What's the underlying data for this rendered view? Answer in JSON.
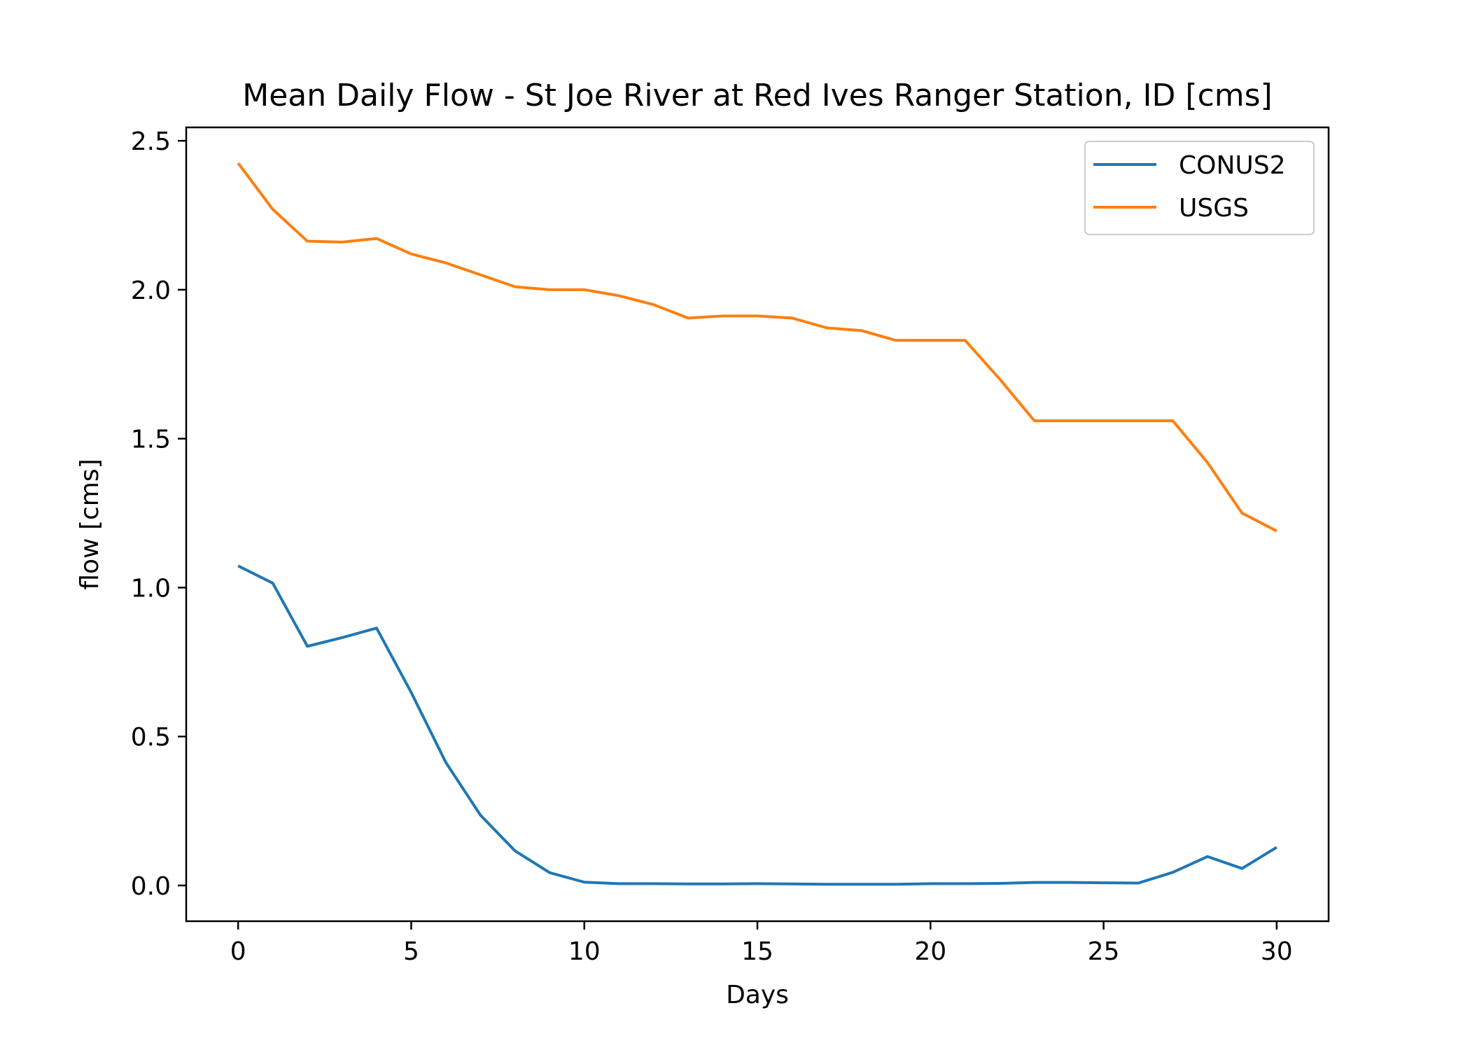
{
  "chart_data": {
    "type": "line",
    "title": "Mean Daily Flow - St Joe River at Red Ives Ranger Station, ID [cms]",
    "xlabel": "Days",
    "ylabel": "flow [cms]",
    "xlim": [
      -1.5,
      31.5
    ],
    "ylim": [
      -0.12,
      2.545
    ],
    "xticks": [
      0,
      5,
      10,
      15,
      20,
      25,
      30
    ],
    "xtick_labels": [
      "0",
      "5",
      "10",
      "15",
      "20",
      "25",
      "30"
    ],
    "yticks": [
      0.0,
      0.5,
      1.0,
      1.5,
      2.0,
      2.5
    ],
    "ytick_labels": [
      "0.0",
      "0.5",
      "1.0",
      "1.5",
      "2.0",
      "2.5"
    ],
    "grid": false,
    "legend_position": "top-right",
    "x": [
      0,
      1,
      2,
      3,
      4,
      5,
      6,
      7,
      8,
      9,
      10,
      11,
      12,
      13,
      14,
      15,
      16,
      17,
      18,
      19,
      20,
      21,
      22,
      23,
      24,
      25,
      26,
      27,
      28,
      29,
      30
    ],
    "series": [
      {
        "name": "CONUS2",
        "color": "#1f77b4",
        "values": [
          1.073,
          1.015,
          0.803,
          0.832,
          0.864,
          0.648,
          0.413,
          0.236,
          0.116,
          0.043,
          0.011,
          0.006,
          0.006,
          0.005,
          0.005,
          0.006,
          0.005,
          0.004,
          0.004,
          0.004,
          0.006,
          0.006,
          0.007,
          0.01,
          0.01,
          0.009,
          0.008,
          0.044,
          0.097,
          0.057,
          0.128
        ]
      },
      {
        "name": "USGS",
        "color": "#ff7f0e",
        "values": [
          2.425,
          2.27,
          2.163,
          2.16,
          2.172,
          2.12,
          2.09,
          2.05,
          2.01,
          2.0,
          2.0,
          1.98,
          1.95,
          1.905,
          1.912,
          1.912,
          1.905,
          1.872,
          1.863,
          1.83,
          1.83,
          1.83,
          1.7,
          1.56,
          1.56,
          1.56,
          1.56,
          1.56,
          1.42,
          1.25,
          1.19
        ]
      }
    ]
  }
}
